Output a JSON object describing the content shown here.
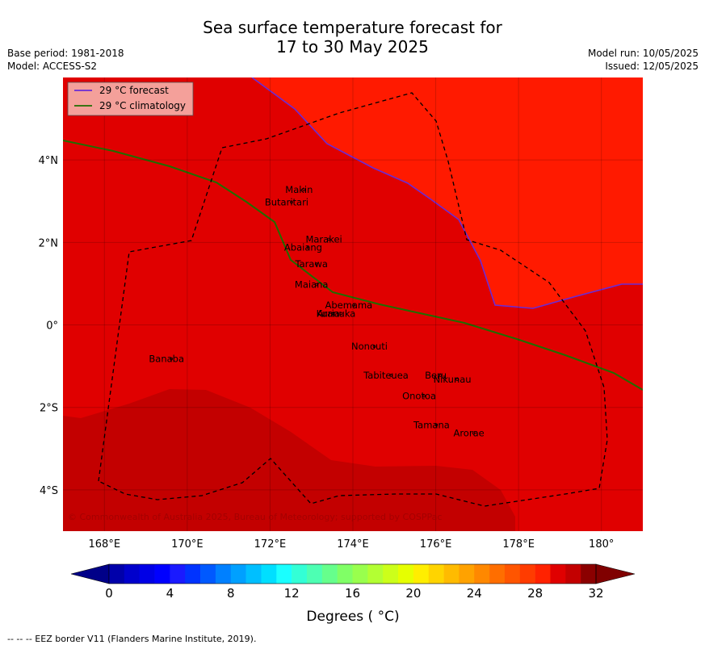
{
  "title": {
    "line1": "Sea surface temperature forecast for",
    "line2": "17 to 30 May 2025"
  },
  "meta": {
    "base_period": "Base period: 1981-2018",
    "model": "Model: ACCESS-S2",
    "model_run": "Model run: 10/05/2025",
    "issued": "Issued: 12/05/2025"
  },
  "map": {
    "lon_range": [
      167,
      181
    ],
    "lat_range": [
      -5,
      6
    ],
    "lon_ticks": [
      {
        "lon": 168,
        "label": "168°E"
      },
      {
        "lon": 170,
        "label": "170°E"
      },
      {
        "lon": 172,
        "label": "172°E"
      },
      {
        "lon": 174,
        "label": "174°E"
      },
      {
        "lon": 176,
        "label": "176°E"
      },
      {
        "lon": 178,
        "label": "178°E"
      },
      {
        "lon": 180,
        "label": "180°"
      }
    ],
    "lat_ticks": [
      {
        "lat": 4,
        "label": "4°N"
      },
      {
        "lat": 2,
        "label": "2°N"
      },
      {
        "lat": 0,
        "label": "0°"
      },
      {
        "lat": -2,
        "label": "2°S"
      },
      {
        "lat": -4,
        "label": "4°S"
      }
    ],
    "colors": {
      "warm_high": "#ff1a00",
      "mid": "#e00000",
      "dark": "#c30000",
      "forecast_line": "#6a2bd6",
      "climatology_line": "#1f6e00",
      "legend_bg": "#f4a09a"
    },
    "legend": {
      "forecast": "29 °C  forecast",
      "climatology": "29 °C  climatology",
      "placement": "top-left"
    },
    "islands": [
      {
        "name": "Makin",
        "lon": 172.7,
        "lat": 3.2
      },
      {
        "name": "Butaritari",
        "lon": 172.4,
        "lat": 2.9
      },
      {
        "name": "Marakei",
        "lon": 173.3,
        "lat": 2.0
      },
      {
        "name": "Abaiang",
        "lon": 172.8,
        "lat": 1.8
      },
      {
        "name": "Tarawa",
        "lon": 173.0,
        "lat": 1.4
      },
      {
        "name": "Maiana",
        "lon": 173.0,
        "lat": 0.9
      },
      {
        "name": "Abemama",
        "lon": 173.9,
        "lat": 0.4
      },
      {
        "name": "Kuria",
        "lon": 173.4,
        "lat": 0.2
      },
      {
        "name": "Aranuka",
        "lon": 173.6,
        "lat": 0.2
      },
      {
        "name": "Nonouti",
        "lon": 174.4,
        "lat": -0.6
      },
      {
        "name": "Banaba",
        "lon": 169.5,
        "lat": -0.9
      },
      {
        "name": "Beru",
        "lon": 176.0,
        "lat": -1.3
      },
      {
        "name": "Nikunau",
        "lon": 176.4,
        "lat": -1.4
      },
      {
        "name": "Tabiteuea",
        "lon": 174.8,
        "lat": -1.3
      },
      {
        "name": "Onotoa",
        "lon": 175.6,
        "lat": -1.8
      },
      {
        "name": "Tamana",
        "lon": 175.9,
        "lat": -2.5
      },
      {
        "name": "Arorae",
        "lon": 176.8,
        "lat": -2.7
      }
    ],
    "copyright": "© Commonwealth of Australia 2025, Bureau of Meteorology; supported by COSPPac"
  },
  "colorbar": {
    "label": "Degrees ( °C)",
    "range": [
      0,
      32
    ],
    "tick_labels": [
      "0",
      "4",
      "8",
      "12",
      "16",
      "20",
      "24",
      "28",
      "32"
    ],
    "colors": [
      "#0000aa",
      "#0000cc",
      "#0000e6",
      "#0000ff",
      "#1a1aff",
      "#0033ff",
      "#0059ff",
      "#0080ff",
      "#00a0ff",
      "#00bfff",
      "#00dfff",
      "#1affff",
      "#33ffd6",
      "#4dffb3",
      "#66ff8c",
      "#80ff66",
      "#99ff4d",
      "#b3ff33",
      "#ccff1a",
      "#e6ff00",
      "#ffee00",
      "#ffd400",
      "#ffbb00",
      "#ffa200",
      "#ff8800",
      "#ff6e00",
      "#ff5500",
      "#ff3c00",
      "#ff2200",
      "#e00000",
      "#c30000",
      "#8b0000"
    ],
    "under_color": "#000088",
    "over_color": "#800000"
  },
  "footer": "--  --  -- EEZ border V11 (Flanders Marine Institute, 2019)."
}
